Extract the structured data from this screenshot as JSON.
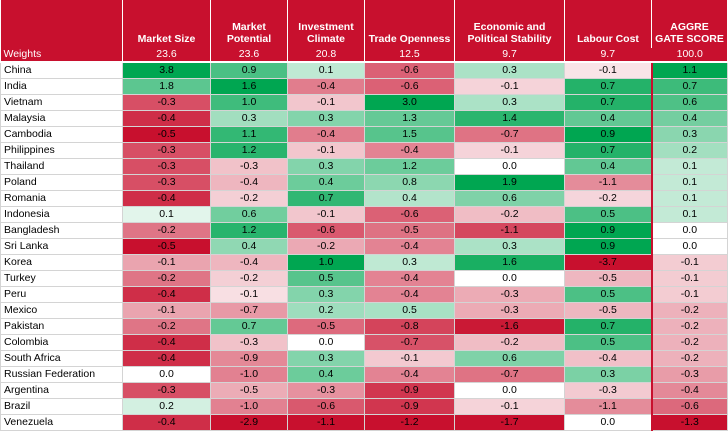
{
  "headers": [
    "",
    "Market Size",
    "Market Potential",
    "Investment Climate",
    "Trade Openness",
    "Economic and Political Stability",
    "Labour Cost",
    "AGGRE GATE SCORE"
  ],
  "weights": {
    "label": "Weights",
    "values": [
      "23.6",
      "23.6",
      "20.8",
      "12.5",
      "9.7",
      "9.7",
      "100.0"
    ]
  },
  "rows": [
    {
      "country": "China",
      "values": [
        "3.8",
        "0.9",
        "0.1",
        "-0.6",
        "0.3",
        "-0.1",
        "1.1"
      ]
    },
    {
      "country": "India",
      "values": [
        "1.8",
        "1.6",
        "-0.4",
        "-0.6",
        "-0.1",
        "0.7",
        "0.7"
      ]
    },
    {
      "country": "Vietnam",
      "values": [
        "-0.3",
        "1.0",
        "-0.1",
        "3.0",
        "0.3",
        "0.7",
        "0.6"
      ]
    },
    {
      "country": "Malaysia",
      "values": [
        "-0.4",
        "0.3",
        "0.3",
        "1.3",
        "1.4",
        "0.4",
        "0.4"
      ]
    },
    {
      "country": "Cambodia",
      "values": [
        "-0.5",
        "1.1",
        "-0.4",
        "1.5",
        "-0.7",
        "0.9",
        "0.3"
      ]
    },
    {
      "country": "Philippines",
      "values": [
        "-0.3",
        "1.2",
        "-0.1",
        "-0.4",
        "-0.1",
        "0.7",
        "0.2"
      ]
    },
    {
      "country": "Thailand",
      "values": [
        "-0.3",
        "-0.3",
        "0.3",
        "1.2",
        "0.0",
        "0.4",
        "0.1"
      ]
    },
    {
      "country": "Poland",
      "values": [
        "-0.3",
        "-0.4",
        "0.4",
        "0.8",
        "1.9",
        "-1.1",
        "0.1"
      ]
    },
    {
      "country": "Romania",
      "values": [
        "-0.4",
        "-0.2",
        "0.7",
        "0.4",
        "0.6",
        "-0.2",
        "0.1"
      ]
    },
    {
      "country": "Indonesia",
      "values": [
        "0.1",
        "0.6",
        "-0.1",
        "-0.6",
        "-0.2",
        "0.5",
        "0.1"
      ]
    },
    {
      "country": "Bangladesh",
      "values": [
        "-0.2",
        "1.2",
        "-0.6",
        "-0.5",
        "-1.1",
        "0.9",
        "0.0"
      ]
    },
    {
      "country": "Sri Lanka",
      "values": [
        "-0.5",
        "0.4",
        "-0.2",
        "-0.4",
        "0.3",
        "0.9",
        "0.0"
      ]
    },
    {
      "country": "Korea",
      "values": [
        "-0.1",
        "-0.4",
        "1.0",
        "0.3",
        "1.6",
        "-3.7",
        "-0.1"
      ]
    },
    {
      "country": "Turkey",
      "values": [
        "-0.2",
        "-0.2",
        "0.5",
        "-0.4",
        "0.0",
        "-0.5",
        "-0.1"
      ]
    },
    {
      "country": "Peru",
      "values": [
        "-0.4",
        "-0.1",
        "0.3",
        "-0.4",
        "-0.3",
        "0.5",
        "-0.1"
      ]
    },
    {
      "country": "Mexico",
      "values": [
        "-0.1",
        "-0.7",
        "0.2",
        "0.5",
        "-0.3",
        "-0.5",
        "-0.2"
      ]
    },
    {
      "country": "Pakistan",
      "values": [
        "-0.2",
        "0.7",
        "-0.5",
        "-0.8",
        "-1.6",
        "0.7",
        "-0.2"
      ]
    },
    {
      "country": "Colombia",
      "values": [
        "-0.4",
        "-0.3",
        "0.0",
        "-0.7",
        "-0.2",
        "0.5",
        "-0.2"
      ]
    },
    {
      "country": "South Africa",
      "values": [
        "-0.4",
        "-0.9",
        "0.3",
        "-0.1",
        "0.6",
        "-0.4",
        "-0.2"
      ]
    },
    {
      "country": "Russian Federation",
      "values": [
        "0.0",
        "-1.0",
        "0.4",
        "-0.4",
        "-0.7",
        "0.3",
        "-0.3"
      ]
    },
    {
      "country": "Argentina",
      "values": [
        "-0.3",
        "-0.5",
        "-0.3",
        "-0.9",
        "0.0",
        "-0.3",
        "-0.4"
      ]
    },
    {
      "country": "Brazil",
      "values": [
        "0.2",
        "-1.0",
        "-0.6",
        "-0.9",
        "-0.1",
        "-1.1",
        "-0.6"
      ]
    },
    {
      "country": "Venezuela",
      "values": [
        "-0.4",
        "-2.9",
        "-1.1",
        "-1.2",
        "-1.7",
        "0.0",
        "-1.3"
      ]
    }
  ],
  "colors": {
    "header_bg": "#c8102e",
    "header_text": "#ffffff",
    "positive_strong": "#00a651",
    "negative_strong": "#c8102e",
    "neutral": "#ffffff"
  }
}
